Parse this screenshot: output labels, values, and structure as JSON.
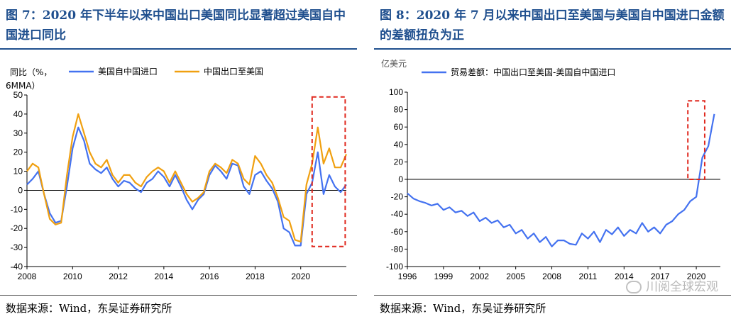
{
  "left": {
    "title": "图 7：2020 年下半年以来中国出口美国同比显著超过美国自中国进口同比",
    "source": "数据来源：Wind，东吴证券研究所"
  },
  "right": {
    "title": "图 8：2020 年 7 月以来中国出口至美国与美国自中国进口金额的差额扭负为正",
    "source": "数据来源：Wind，东吴证券研究所",
    "watermark": "川阅全球宏观"
  },
  "colors": {
    "blue": "#4472f0",
    "orange": "#f0a010",
    "highlight": "#e0281e",
    "title": "#1f4f8e"
  },
  "chart_data": [
    {
      "type": "line",
      "ylabel": "同比（%，6MMA）",
      "xlim": [
        2008,
        2022
      ],
      "ylim": [
        -40,
        50
      ],
      "xticks": [
        "2008",
        "2010",
        "2012",
        "2014",
        "2016",
        "2018",
        "2020"
      ],
      "yticks": [
        "50",
        "40",
        "30",
        "20",
        "10",
        "0",
        "-10",
        "-20",
        "-30",
        "-40"
      ],
      "legend": "top",
      "x": [
        2008.0,
        2008.25,
        2008.5,
        2008.75,
        2009.0,
        2009.25,
        2009.5,
        2009.75,
        2010.0,
        2010.25,
        2010.5,
        2010.75,
        2011.0,
        2011.25,
        2011.5,
        2011.75,
        2012.0,
        2012.25,
        2012.5,
        2012.75,
        2013.0,
        2013.25,
        2013.5,
        2013.75,
        2014.0,
        2014.25,
        2014.5,
        2014.75,
        2015.0,
        2015.25,
        2015.5,
        2015.75,
        2016.0,
        2016.25,
        2016.5,
        2016.75,
        2017.0,
        2017.25,
        2017.5,
        2017.75,
        2018.0,
        2018.25,
        2018.5,
        2018.75,
        2019.0,
        2019.25,
        2019.5,
        2019.75,
        2020.0,
        2020.25,
        2020.5,
        2020.75,
        2021.0,
        2021.25,
        2021.5,
        2021.75,
        2022.0
      ],
      "series": [
        {
          "name": "美国自中国进口",
          "values": [
            3,
            6,
            10,
            -2,
            -12,
            -17,
            -16,
            2,
            22,
            33,
            26,
            14,
            11,
            9,
            12,
            6,
            2,
            5,
            4,
            1,
            -1,
            4,
            6,
            10,
            7,
            2,
            8,
            2,
            -5,
            -10,
            -5,
            -2,
            8,
            13,
            10,
            6,
            14,
            13,
            2,
            -2,
            8,
            10,
            5,
            1,
            -6,
            -20,
            -22,
            -29,
            -29,
            -2,
            4,
            20,
            -2,
            8,
            2,
            -1,
            3
          ]
        },
        {
          "name": "中国出口至美国",
          "values": [
            10,
            14,
            12,
            -2,
            -15,
            -18,
            -17,
            8,
            28,
            40,
            30,
            20,
            14,
            12,
            16,
            8,
            4,
            8,
            8,
            4,
            2,
            7,
            10,
            12,
            10,
            4,
            10,
            4,
            -2,
            -6,
            -4,
            -1,
            10,
            14,
            12,
            9,
            16,
            14,
            6,
            3,
            18,
            14,
            8,
            4,
            -4,
            -14,
            -16,
            -26,
            -27,
            3,
            14,
            33,
            14,
            22,
            12,
            12,
            19
          ]
        }
      ]
    },
    {
      "type": "line",
      "ylabel": "亿美元",
      "xlim": [
        1996,
        2022
      ],
      "ylim": [
        -100,
        100
      ],
      "xticks": [
        "1996",
        "1999",
        "2002",
        "2005",
        "2008",
        "2011",
        "2014",
        "2017",
        "2020"
      ],
      "yticks": [
        "100",
        "80",
        "60",
        "40",
        "20",
        "0",
        "-20",
        "-40",
        "-60",
        "-80",
        "-100"
      ],
      "legend": "top",
      "x": [
        1996.0,
        1996.5,
        1997.0,
        1997.5,
        1998.0,
        1998.5,
        1999.0,
        1999.5,
        2000.0,
        2000.5,
        2001.0,
        2001.5,
        2002.0,
        2002.5,
        2003.0,
        2003.5,
        2004.0,
        2004.5,
        2005.0,
        2005.5,
        2006.0,
        2006.5,
        2007.0,
        2007.5,
        2008.0,
        2008.5,
        2009.0,
        2009.5,
        2010.0,
        2010.5,
        2011.0,
        2011.5,
        2012.0,
        2012.5,
        2013.0,
        2013.5,
        2014.0,
        2014.5,
        2015.0,
        2015.5,
        2016.0,
        2016.5,
        2017.0,
        2017.5,
        2018.0,
        2018.5,
        2019.0,
        2019.5,
        2020.0,
        2020.5,
        2021.0,
        2021.5
      ],
      "series": [
        {
          "name": "贸易差额：中国出口至美国-美国自中国进口",
          "values": [
            -16,
            -22,
            -25,
            -27,
            -30,
            -28,
            -35,
            -32,
            -38,
            -36,
            -42,
            -38,
            -48,
            -44,
            -50,
            -47,
            -55,
            -52,
            -62,
            -58,
            -68,
            -62,
            -72,
            -66,
            -77,
            -70,
            -70,
            -74,
            -75,
            -62,
            -68,
            -60,
            -72,
            -58,
            -63,
            -55,
            -65,
            -58,
            -62,
            -50,
            -60,
            -55,
            -62,
            -52,
            -48,
            -40,
            -35,
            -25,
            -20,
            25,
            38,
            75
          ]
        }
      ]
    }
  ]
}
